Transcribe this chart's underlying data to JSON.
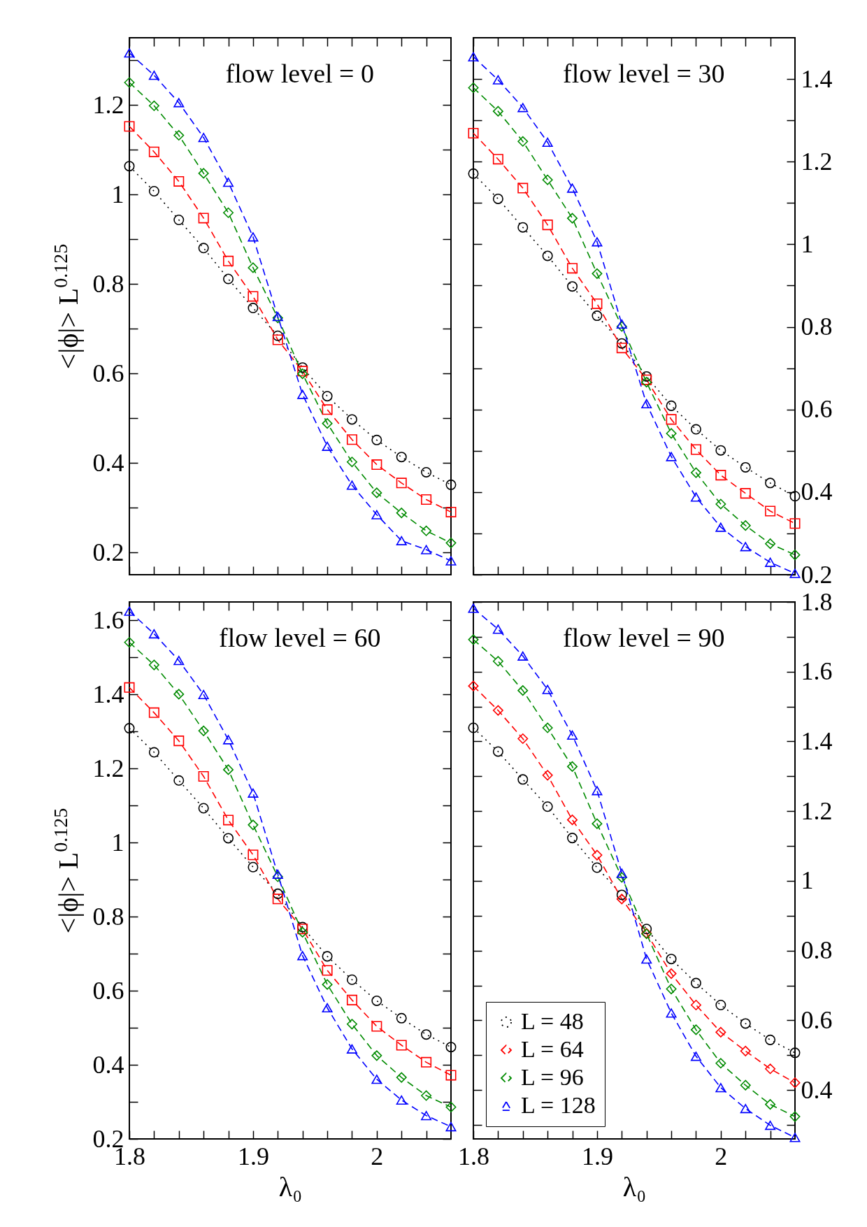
{
  "chart_data": [
    {
      "type": "line",
      "title": "flow level = 0",
      "ylabel": "<|ϕ|> L$^{0.125}$",
      "tick_labels": "y",
      "x": [
        1.8,
        1.82,
        1.84,
        1.86,
        1.88,
        1.9,
        1.92,
        1.94,
        1.96,
        1.98,
        2.0,
        2.02,
        2.04,
        2.06
      ],
      "xlim": [
        1.8,
        2.06
      ],
      "xticks": [
        1.8,
        {
          "value": 1.82,
          "label": null
        },
        {
          "value": 1.84,
          "label": null
        },
        {
          "value": 1.86,
          "label": null
        },
        {
          "value": 1.88,
          "label": null
        },
        1.9,
        {
          "value": 1.92,
          "label": null
        },
        {
          "value": 1.94,
          "label": null
        },
        {
          "value": 1.96,
          "label": null
        },
        {
          "value": 1.98,
          "label": null
        },
        2,
        {
          "value": 2.02,
          "label": null
        },
        {
          "value": 2.04,
          "label": null
        }
      ],
      "ylim": [
        0.15,
        1.35
      ],
      "yticks": [
        0.2,
        {
          "value": 0.3,
          "label": null
        },
        0.4,
        {
          "value": 0.5,
          "label": null
        },
        0.6,
        {
          "value": 0.7,
          "label": null
        },
        0.8,
        {
          "value": 0.9,
          "label": null
        },
        1,
        {
          "value": 1.1,
          "label": null
        },
        1.2,
        {
          "value": 1.3,
          "label": null
        }
      ],
      "series": [
        {
          "color": "#000000",
          "marker": "circle",
          "line_style": "dotted",
          "values": [
            1.063,
            1.007,
            0.943,
            0.88,
            0.811,
            0.746,
            0.684,
            0.613,
            0.549,
            0.497,
            0.451,
            0.413,
            0.379,
            0.351
          ]
        },
        {
          "color": "#ff0000",
          "marker": "square",
          "line_style": "dashed",
          "values": [
            1.152,
            1.095,
            1.029,
            0.947,
            0.851,
            0.772,
            0.675,
            0.605,
            0.519,
            0.452,
            0.396,
            0.355,
            0.318,
            0.29
          ]
        },
        {
          "color": "#008b00",
          "marker": "diamond",
          "line_style": "dashed",
          "values": [
            1.25,
            1.198,
            1.132,
            1.047,
            0.959,
            0.836,
            0.724,
            0.599,
            0.488,
            0.402,
            0.333,
            0.288,
            0.248,
            0.221
          ]
        },
        {
          "color": "#0000ff",
          "marker": "triangle",
          "line_style": "dashed",
          "values": [
            1.316,
            1.266,
            1.205,
            1.127,
            1.027,
            0.905,
            0.727,
            0.553,
            0.437,
            0.35,
            0.284,
            0.226,
            0.206,
            0.181
          ]
        }
      ]
    },
    {
      "type": "line",
      "title": "flow level = 30",
      "tick_labels": "y",
      "x": [
        1.8,
        1.82,
        1.84,
        1.86,
        1.88,
        1.9,
        1.92,
        1.94,
        1.96,
        1.98,
        2.0,
        2.02,
        2.04,
        2.06
      ],
      "xlim": [
        1.8,
        2.06
      ],
      "xticks": [
        1.8,
        {
          "value": 1.82,
          "label": null
        },
        {
          "value": 1.84,
          "label": null
        },
        {
          "value": 1.86,
          "label": null
        },
        {
          "value": 1.88,
          "label": null
        },
        1.9,
        {
          "value": 1.92,
          "label": null
        },
        {
          "value": 1.94,
          "label": null
        },
        {
          "value": 1.96,
          "label": null
        },
        {
          "value": 1.98,
          "label": null
        },
        2,
        {
          "value": 2.02,
          "label": null
        },
        {
          "value": 2.04,
          "label": null
        }
      ],
      "y2lim": [
        0.2,
        1.5
      ],
      "y2ticks": [
        0.2,
        {
          "value": 0.3,
          "label": null
        },
        0.4,
        {
          "value": 0.5,
          "label": null
        },
        0.6,
        {
          "value": 0.7,
          "label": null
        },
        0.8,
        {
          "value": 0.9,
          "label": null
        },
        1,
        {
          "value": 1.1,
          "label": null
        },
        1.2,
        {
          "value": 1.3,
          "label": null
        },
        1.4
      ],
      "series": [
        {
          "axis": "y2",
          "color": "#000000",
          "marker": "circle",
          "line_style": "dotted",
          "values": [
            1.171,
            1.11,
            1.041,
            0.972,
            0.898,
            0.827,
            0.76,
            0.68,
            0.609,
            0.552,
            0.501,
            0.46,
            0.422,
            0.39
          ]
        },
        {
          "axis": "y2",
          "color": "#ff0000",
          "marker": "square",
          "line_style": "dashed",
          "values": [
            1.269,
            1.206,
            1.136,
            1.047,
            0.942,
            0.856,
            0.749,
            0.672,
            0.576,
            0.503,
            0.441,
            0.397,
            0.354,
            0.324
          ]
        },
        {
          "axis": "y2",
          "color": "#008b00",
          "marker": "diamond",
          "line_style": "dashed",
          "values": [
            1.379,
            1.322,
            1.249,
            1.156,
            1.063,
            0.929,
            0.801,
            0.666,
            0.542,
            0.447,
            0.371,
            0.319,
            0.275,
            0.248
          ]
        },
        {
          "axis": "y2",
          "color": "#0000ff",
          "marker": "triangle",
          "line_style": "dashed",
          "values": [
            1.454,
            1.398,
            1.331,
            1.247,
            1.136,
            1.006,
            0.807,
            0.614,
            0.486,
            0.388,
            0.315,
            0.268,
            0.23,
            0.203
          ]
        }
      ]
    },
    {
      "type": "line",
      "title": "flow level = 60",
      "xlabel": "λ₀",
      "ylabel": "<|ϕ|> L$^{0.125}$",
      "x": [
        1.8,
        1.82,
        1.84,
        1.86,
        1.88,
        1.9,
        1.92,
        1.94,
        1.96,
        1.98,
        2.0,
        2.02,
        2.04,
        2.06
      ],
      "xlim": [
        1.8,
        2.06
      ],
      "xticks": [
        1.8,
        {
          "value": 1.82,
          "label": null
        },
        {
          "value": 1.84,
          "label": null
        },
        {
          "value": 1.86,
          "label": null
        },
        {
          "value": 1.88,
          "label": null
        },
        1.9,
        {
          "value": 1.92,
          "label": null
        },
        {
          "value": 1.94,
          "label": null
        },
        {
          "value": 1.96,
          "label": null
        },
        {
          "value": 1.98,
          "label": null
        },
        2,
        {
          "value": 2.02,
          "label": null
        },
        {
          "value": 2.04,
          "label": null
        }
      ],
      "ylim": [
        0.2,
        1.65
      ],
      "yticks": [
        0.2,
        {
          "value": 0.3,
          "label": null
        },
        0.4,
        {
          "value": 0.5,
          "label": null
        },
        0.6,
        {
          "value": 0.7,
          "label": null
        },
        0.8,
        {
          "value": 0.9,
          "label": null
        },
        1,
        {
          "value": 1.1,
          "label": null
        },
        1.2,
        {
          "value": 1.3,
          "label": null
        },
        1.4,
        {
          "value": 1.5,
          "label": null
        },
        1.6
      ],
      "series": [
        {
          "color": "#000000",
          "marker": "circle",
          "line_style": "dotted",
          "values": [
            1.309,
            1.244,
            1.168,
            1.093,
            1.012,
            0.934,
            0.862,
            0.772,
            0.693,
            0.63,
            0.573,
            0.526,
            0.482,
            0.448
          ]
        },
        {
          "color": "#ff0000",
          "marker": "square",
          "line_style": "dashed",
          "values": [
            1.419,
            1.351,
            1.275,
            1.179,
            1.061,
            0.967,
            0.848,
            0.767,
            0.655,
            0.575,
            0.504,
            0.453,
            0.407,
            0.372
          ]
        },
        {
          "color": "#008b00",
          "marker": "diamond",
          "line_style": "dashed",
          "values": [
            1.541,
            1.48,
            1.401,
            1.302,
            1.197,
            1.048,
            0.908,
            0.758,
            0.617,
            0.51,
            0.425,
            0.366,
            0.317,
            0.286
          ]
        },
        {
          "color": "#0000ff",
          "marker": "triangle",
          "line_style": "dashed",
          "values": [
            1.625,
            1.564,
            1.492,
            1.4,
            1.278,
            1.134,
            0.915,
            0.695,
            0.554,
            0.443,
            0.361,
            0.305,
            0.263,
            0.233
          ]
        }
      ]
    },
    {
      "type": "line",
      "title": "flow level = 90",
      "xlabel": "λ₀",
      "legend": "bottom left",
      "x": [
        1.8,
        1.82,
        1.84,
        1.86,
        1.88,
        1.9,
        1.92,
        1.94,
        1.96,
        1.98,
        2.0,
        2.02,
        2.04,
        2.06
      ],
      "xlim": [
        1.8,
        2.06
      ],
      "xticks": [
        1.8,
        {
          "value": 1.82,
          "label": null
        },
        {
          "value": 1.84,
          "label": null
        },
        {
          "value": 1.86,
          "label": null
        },
        {
          "value": 1.88,
          "label": null
        },
        1.9,
        {
          "value": 1.92,
          "label": null
        },
        {
          "value": 1.94,
          "label": null
        },
        {
          "value": 1.96,
          "label": null
        },
        {
          "value": 1.98,
          "label": null
        },
        2,
        {
          "value": 2.02,
          "label": null
        },
        {
          "value": 2.04,
          "label": null
        }
      ],
      "y2lim": [
        0.26,
        1.8
      ],
      "y2ticks": [
        {
          "value": 0.3,
          "label": null
        },
        0.4,
        {
          "value": 0.5,
          "label": null
        },
        0.6,
        {
          "value": 0.7,
          "label": null
        },
        0.8,
        {
          "value": 0.9,
          "label": null
        },
        1,
        {
          "value": 1.1,
          "label": null
        },
        1.2,
        {
          "value": 1.3,
          "label": null
        },
        1.4,
        {
          "value": 1.5,
          "label": null
        },
        1.6,
        {
          "value": 1.7,
          "label": null
        },
        1.8
      ],
      "series": [
        {
          "name": "L = 48",
          "axis": "y2",
          "color": "#000000",
          "marker": "circle",
          "line_style": "dotted",
          "values": [
            1.439,
            1.371,
            1.291,
            1.213,
            1.123,
            1.038,
            0.96,
            0.862,
            0.776,
            0.707,
            0.644,
            0.591,
            0.544,
            0.507
          ]
        },
        {
          "name": "L = 64",
          "axis": "y2",
          "color": "#ff0000",
          "marker": "diamond",
          "line_style": "dashed",
          "values": [
            1.559,
            1.489,
            1.408,
            1.303,
            1.175,
            1.074,
            0.948,
            0.85,
            0.734,
            0.644,
            0.566,
            0.512,
            0.461,
            0.421
          ]
        },
        {
          "name": "L = 96",
          "axis": "y2",
          "color": "#008b00",
          "marker": "diamond",
          "line_style": "dashed",
          "values": [
            1.692,
            1.63,
            1.546,
            1.439,
            1.328,
            1.164,
            1.01,
            0.848,
            0.69,
            0.573,
            0.477,
            0.414,
            0.359,
            0.324
          ]
        },
        {
          "name": "L = 128",
          "axis": "y2",
          "color": "#0000ff",
          "marker": "triangle",
          "line_style": "dashed",
          "values": [
            1.782,
            1.722,
            1.645,
            1.549,
            1.418,
            1.259,
            1.022,
            0.776,
            0.621,
            0.497,
            0.407,
            0.347,
            0.299,
            0.264
          ]
        }
      ]
    }
  ]
}
